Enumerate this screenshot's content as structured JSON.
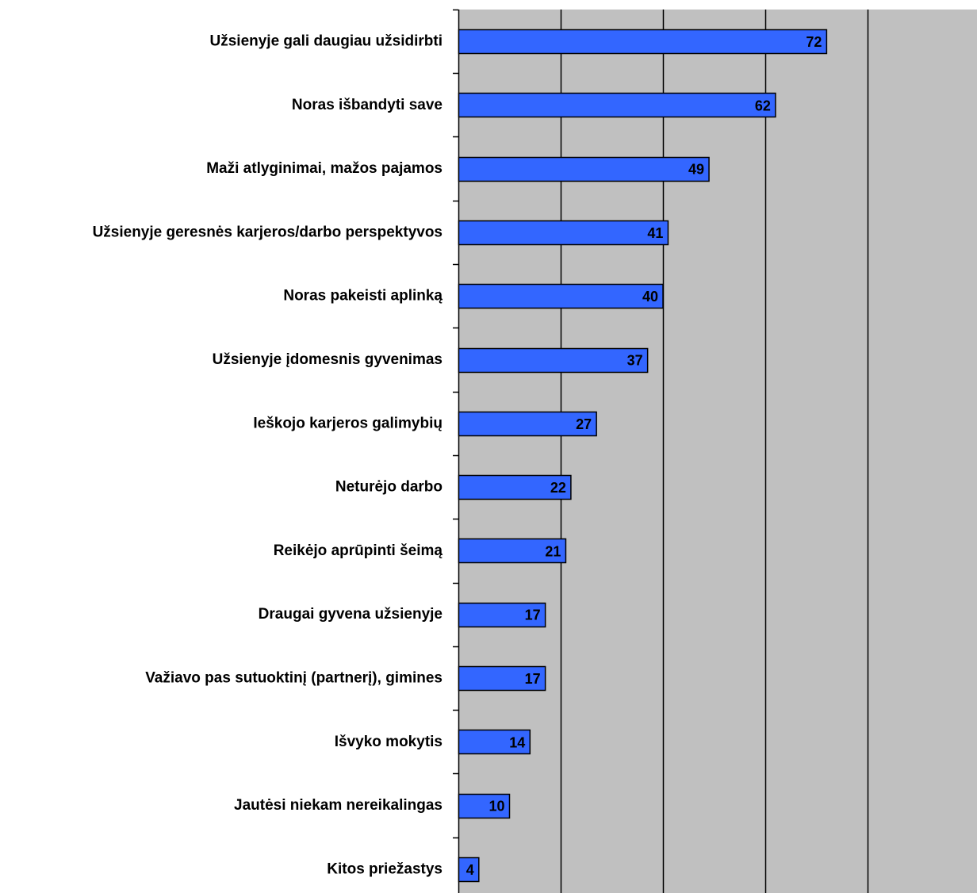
{
  "chart_data": {
    "type": "bar",
    "orientation": "horizontal",
    "categories": [
      "Užsienyje gali daugiau užsidirbti",
      "Noras išbandyti save",
      "Maži atlyginimai, mažos pajamos",
      "Užsienyje geresnės karjeros/darbo perspektyvos",
      "Noras pakeisti aplinką",
      "Užsienyje įdomesnis gyvenimas",
      "Ieškojo karjeros galimybių",
      "Neturėjo darbo",
      "Reikėjo aprūpinti šeimą",
      "Draugai gyvena užsienyje",
      "Važiavo pas sutuoktinį (partnerį), gimines",
      "Išvyko mokytis",
      "Jautėsi niekam nereikalingas",
      "Kitos priežastys"
    ],
    "values": [
      72,
      62,
      49,
      41,
      40,
      37,
      27,
      22,
      21,
      17,
      17,
      14,
      10,
      4
    ],
    "xlim": [
      0,
      100
    ],
    "x_gridlines": [
      20,
      40,
      60,
      80
    ],
    "grid": true,
    "show_data_labels": true,
    "title": "",
    "xlabel": "",
    "ylabel": "",
    "colors": {
      "bar_fill": "#3366FF",
      "bar_stroke": "#000000",
      "plot_background": "#C0C0C0",
      "gridline": "#000000"
    }
  }
}
